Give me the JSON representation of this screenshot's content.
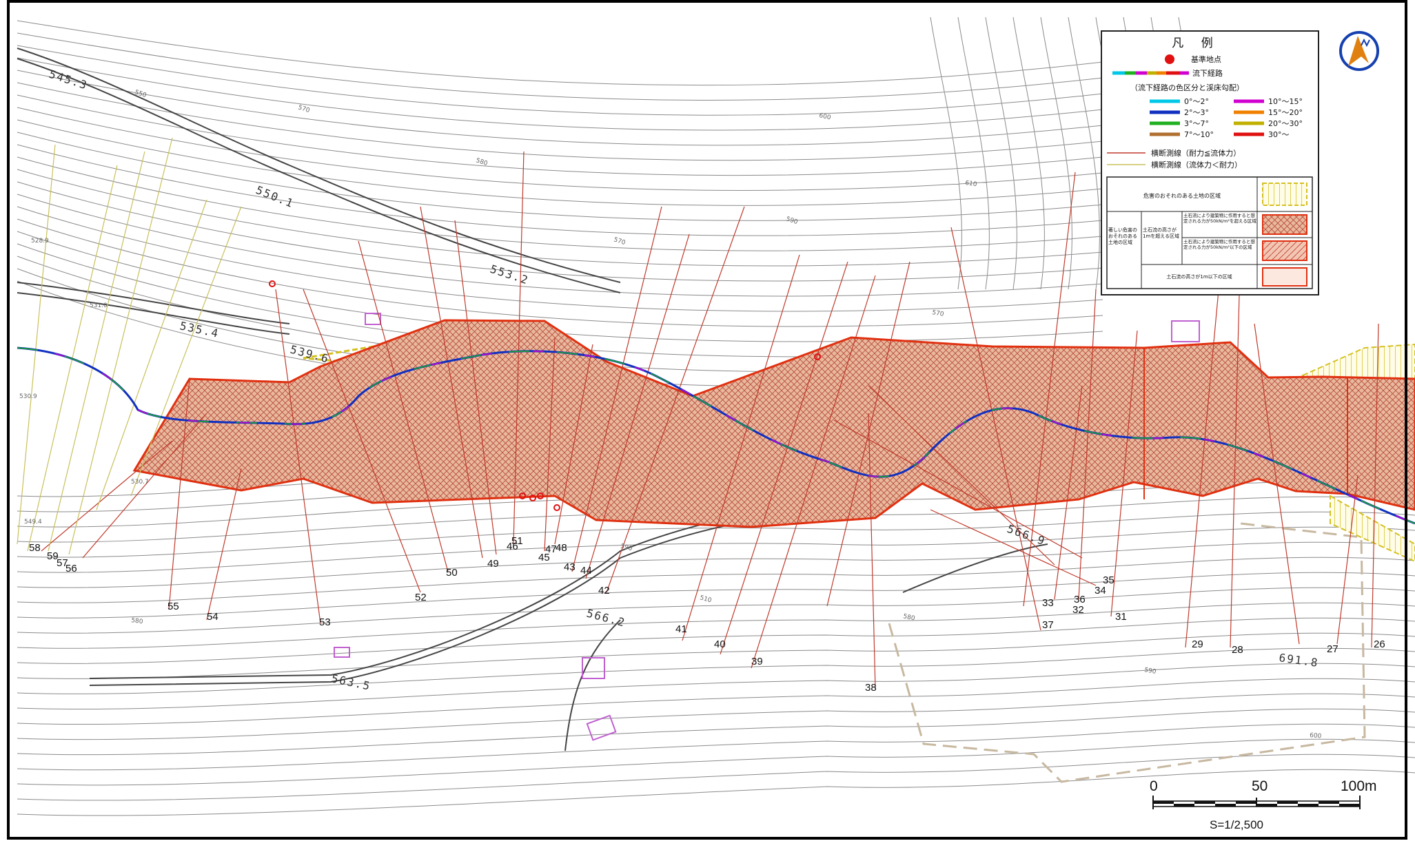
{
  "legend": {
    "title": "凡 例",
    "base_point": "基準地点",
    "flow_path": "流下経路",
    "gradient_heading": "（流下経路の色区分と渓床勾配）",
    "gradient_classes": [
      {
        "label": "0°～2°",
        "color": "#00c8e6"
      },
      {
        "label": "2°～3°",
        "color": "#1030c0"
      },
      {
        "label": "3°～7°",
        "color": "#20b020"
      },
      {
        "label": "7°～10°",
        "color": "#b07030"
      },
      {
        "label": "10°～15°",
        "color": "#d000d0"
      },
      {
        "label": "15°～20°",
        "color": "#f08000"
      },
      {
        "label": "20°～30°",
        "color": "#c0b000"
      },
      {
        "label": "30°～",
        "color": "#e01010"
      }
    ],
    "section_line_red": "横断測線（耐力≦流体力）",
    "section_line_yellow": "横断測線（流体力＜耐力）",
    "zone_danger": "危害のおそれのある土地の区域",
    "zone_severe_group": "著しい危害のおそれのある土地の区域",
    "zone_height_over_1m": "土石流の高さが1mを超える区域",
    "zone_force_over": "土石流により建築物に作用すると想定される力が50kN/m²を超える区域",
    "zone_force_under": "土石流により建築物に作用すると想定される力が50kN/m²以下の区域",
    "zone_height_under_1m": "土石流の高さが1m以下の区域"
  },
  "elevation_labels": [
    "545.3",
    "550.1",
    "553.2",
    "535.4",
    "539.6",
    "531.0",
    "530.7",
    "530.9",
    "528.9",
    "549.4",
    "566.2",
    "563.5",
    "566.9",
    "691.8"
  ],
  "contour_labels": [
    "550",
    "570",
    "580",
    "590",
    "600",
    "610",
    "570",
    "590",
    "570",
    "510",
    "580",
    "580",
    "590",
    "600"
  ],
  "section_numbers": [
    "26",
    "27",
    "28",
    "29",
    "31",
    "32",
    "33",
    "34",
    "35",
    "36",
    "37",
    "38",
    "39",
    "40",
    "41",
    "42",
    "43",
    "44",
    "45",
    "46",
    "47",
    "48",
    "49",
    "50",
    "51",
    "52",
    "53",
    "54",
    "55",
    "56",
    "57",
    "58",
    "59"
  ],
  "scale": {
    "labels": [
      "0",
      "50",
      "100m"
    ],
    "ratio": "S=1/2,500"
  },
  "north_icon": "north-arrow-icon",
  "colors": {
    "zone_fill": "#e8b89a",
    "zone_outline": "#e03010",
    "yellow_zone": "#d4c020",
    "red_section": "#c0392b",
    "yellow_section": "#c8c05a"
  }
}
